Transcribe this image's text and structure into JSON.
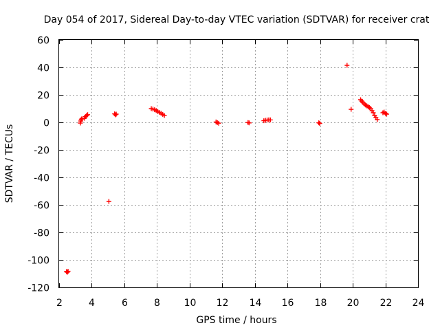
{
  "chart_data": {
    "type": "scatter",
    "title": "Day 054 of 2017, Sidereal Day-to-day VTEC variation (SDTVAR) for receiver crat",
    "xlabel": "GPS time / hours",
    "ylabel": "SDTVAR / TECUs",
    "xlim": [
      2,
      24
    ],
    "ylim": [
      -120,
      60
    ],
    "xticks": [
      2,
      4,
      6,
      8,
      10,
      12,
      14,
      16,
      18,
      20,
      22,
      24
    ],
    "xtick_labels": [
      "2",
      "4",
      "6",
      "8",
      "10",
      "12",
      "14",
      "16",
      "18",
      "20",
      "22",
      "24"
    ],
    "yticks": [
      60,
      40,
      20,
      0,
      -20,
      -40,
      -60,
      -80,
      -100,
      -120
    ],
    "ytick_labels": [
      "60",
      "40",
      "20",
      "0",
      "-20",
      "-40",
      "-60",
      "-80",
      "-100",
      "-120"
    ],
    "grid": true,
    "marker": "plus",
    "marker_color": "#ff0000",
    "series": [
      {
        "name": "SDTVAR",
        "points": [
          [
            2.45,
            -108.5
          ],
          [
            2.5,
            -109.0
          ],
          [
            2.55,
            -108.3
          ],
          [
            3.3,
            -0.5
          ],
          [
            3.33,
            1.0
          ],
          [
            3.36,
            2.2
          ],
          [
            3.4,
            2.8
          ],
          [
            3.55,
            3.0
          ],
          [
            3.62,
            4.2
          ],
          [
            3.68,
            5.0
          ],
          [
            3.75,
            5.6
          ],
          [
            5.05,
            -57.5
          ],
          [
            5.4,
            6.2
          ],
          [
            5.45,
            5.5
          ],
          [
            5.5,
            6.0
          ],
          [
            7.65,
            10.0
          ],
          [
            7.75,
            9.7
          ],
          [
            7.85,
            9.2
          ],
          [
            7.95,
            8.6
          ],
          [
            8.05,
            7.9
          ],
          [
            8.15,
            7.2
          ],
          [
            8.25,
            6.6
          ],
          [
            8.35,
            5.8
          ],
          [
            8.45,
            5.0
          ],
          [
            11.62,
            0.3
          ],
          [
            11.7,
            -0.2
          ],
          [
            11.78,
            -0.6
          ],
          [
            13.58,
            -0.1
          ],
          [
            13.65,
            -0.4
          ],
          [
            14.55,
            1.2
          ],
          [
            14.65,
            1.5
          ],
          [
            14.75,
            1.7
          ],
          [
            14.85,
            1.8
          ],
          [
            14.95,
            1.8
          ],
          [
            17.92,
            -0.3
          ],
          [
            17.98,
            -0.8
          ],
          [
            19.65,
            41.5
          ],
          [
            19.9,
            9.5
          ],
          [
            20.48,
            16.5
          ],
          [
            20.55,
            15.5
          ],
          [
            20.62,
            14.5
          ],
          [
            20.7,
            13.5
          ],
          [
            20.78,
            12.6
          ],
          [
            20.86,
            12.0
          ],
          [
            20.94,
            11.5
          ],
          [
            21.02,
            10.8
          ],
          [
            21.1,
            10.0
          ],
          [
            21.18,
            8.5
          ],
          [
            21.26,
            7.0
          ],
          [
            21.34,
            5.0
          ],
          [
            21.42,
            3.5
          ],
          [
            21.5,
            2.0
          ],
          [
            21.85,
            7.0
          ],
          [
            21.92,
            7.5
          ],
          [
            22.0,
            6.5
          ],
          [
            22.08,
            6.0
          ]
        ]
      }
    ]
  }
}
